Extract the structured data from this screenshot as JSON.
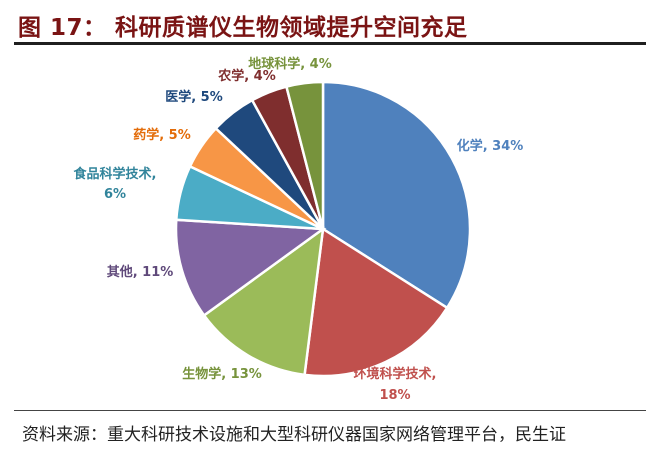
{
  "title": "图 17： 科研质谱仪生物领域提升空间充足",
  "source": "资料来源：重大科研技术设施和大型科研仪器国家网络管理平台，民生证",
  "chart_data": {
    "type": "pie",
    "slices": [
      {
        "label": "化学, 34%",
        "value": 34,
        "color": "#4f81bd"
      },
      {
        "label": "环境科学技术,",
        "label2": "18%",
        "value": 18,
        "color": "#c0504d"
      },
      {
        "label": "生物学, 13%",
        "value": 13,
        "color": "#9bbb59"
      },
      {
        "label": "其他, 11%",
        "value": 11,
        "color": "#8064a2"
      },
      {
        "label": "食品科学技术,",
        "label2": "6%",
        "value": 6,
        "color": "#4bacc6"
      },
      {
        "label": "药学, 5%",
        "value": 5,
        "color": "#f79646"
      },
      {
        "label": "医学, 5%",
        "value": 5,
        "color": "#1f497d"
      },
      {
        "label": "农学, 4%",
        "value": 4,
        "color": "#7f2e2e"
      },
      {
        "label": "地球科学, 4%",
        "value": 4,
        "color": "#77933c"
      }
    ]
  }
}
